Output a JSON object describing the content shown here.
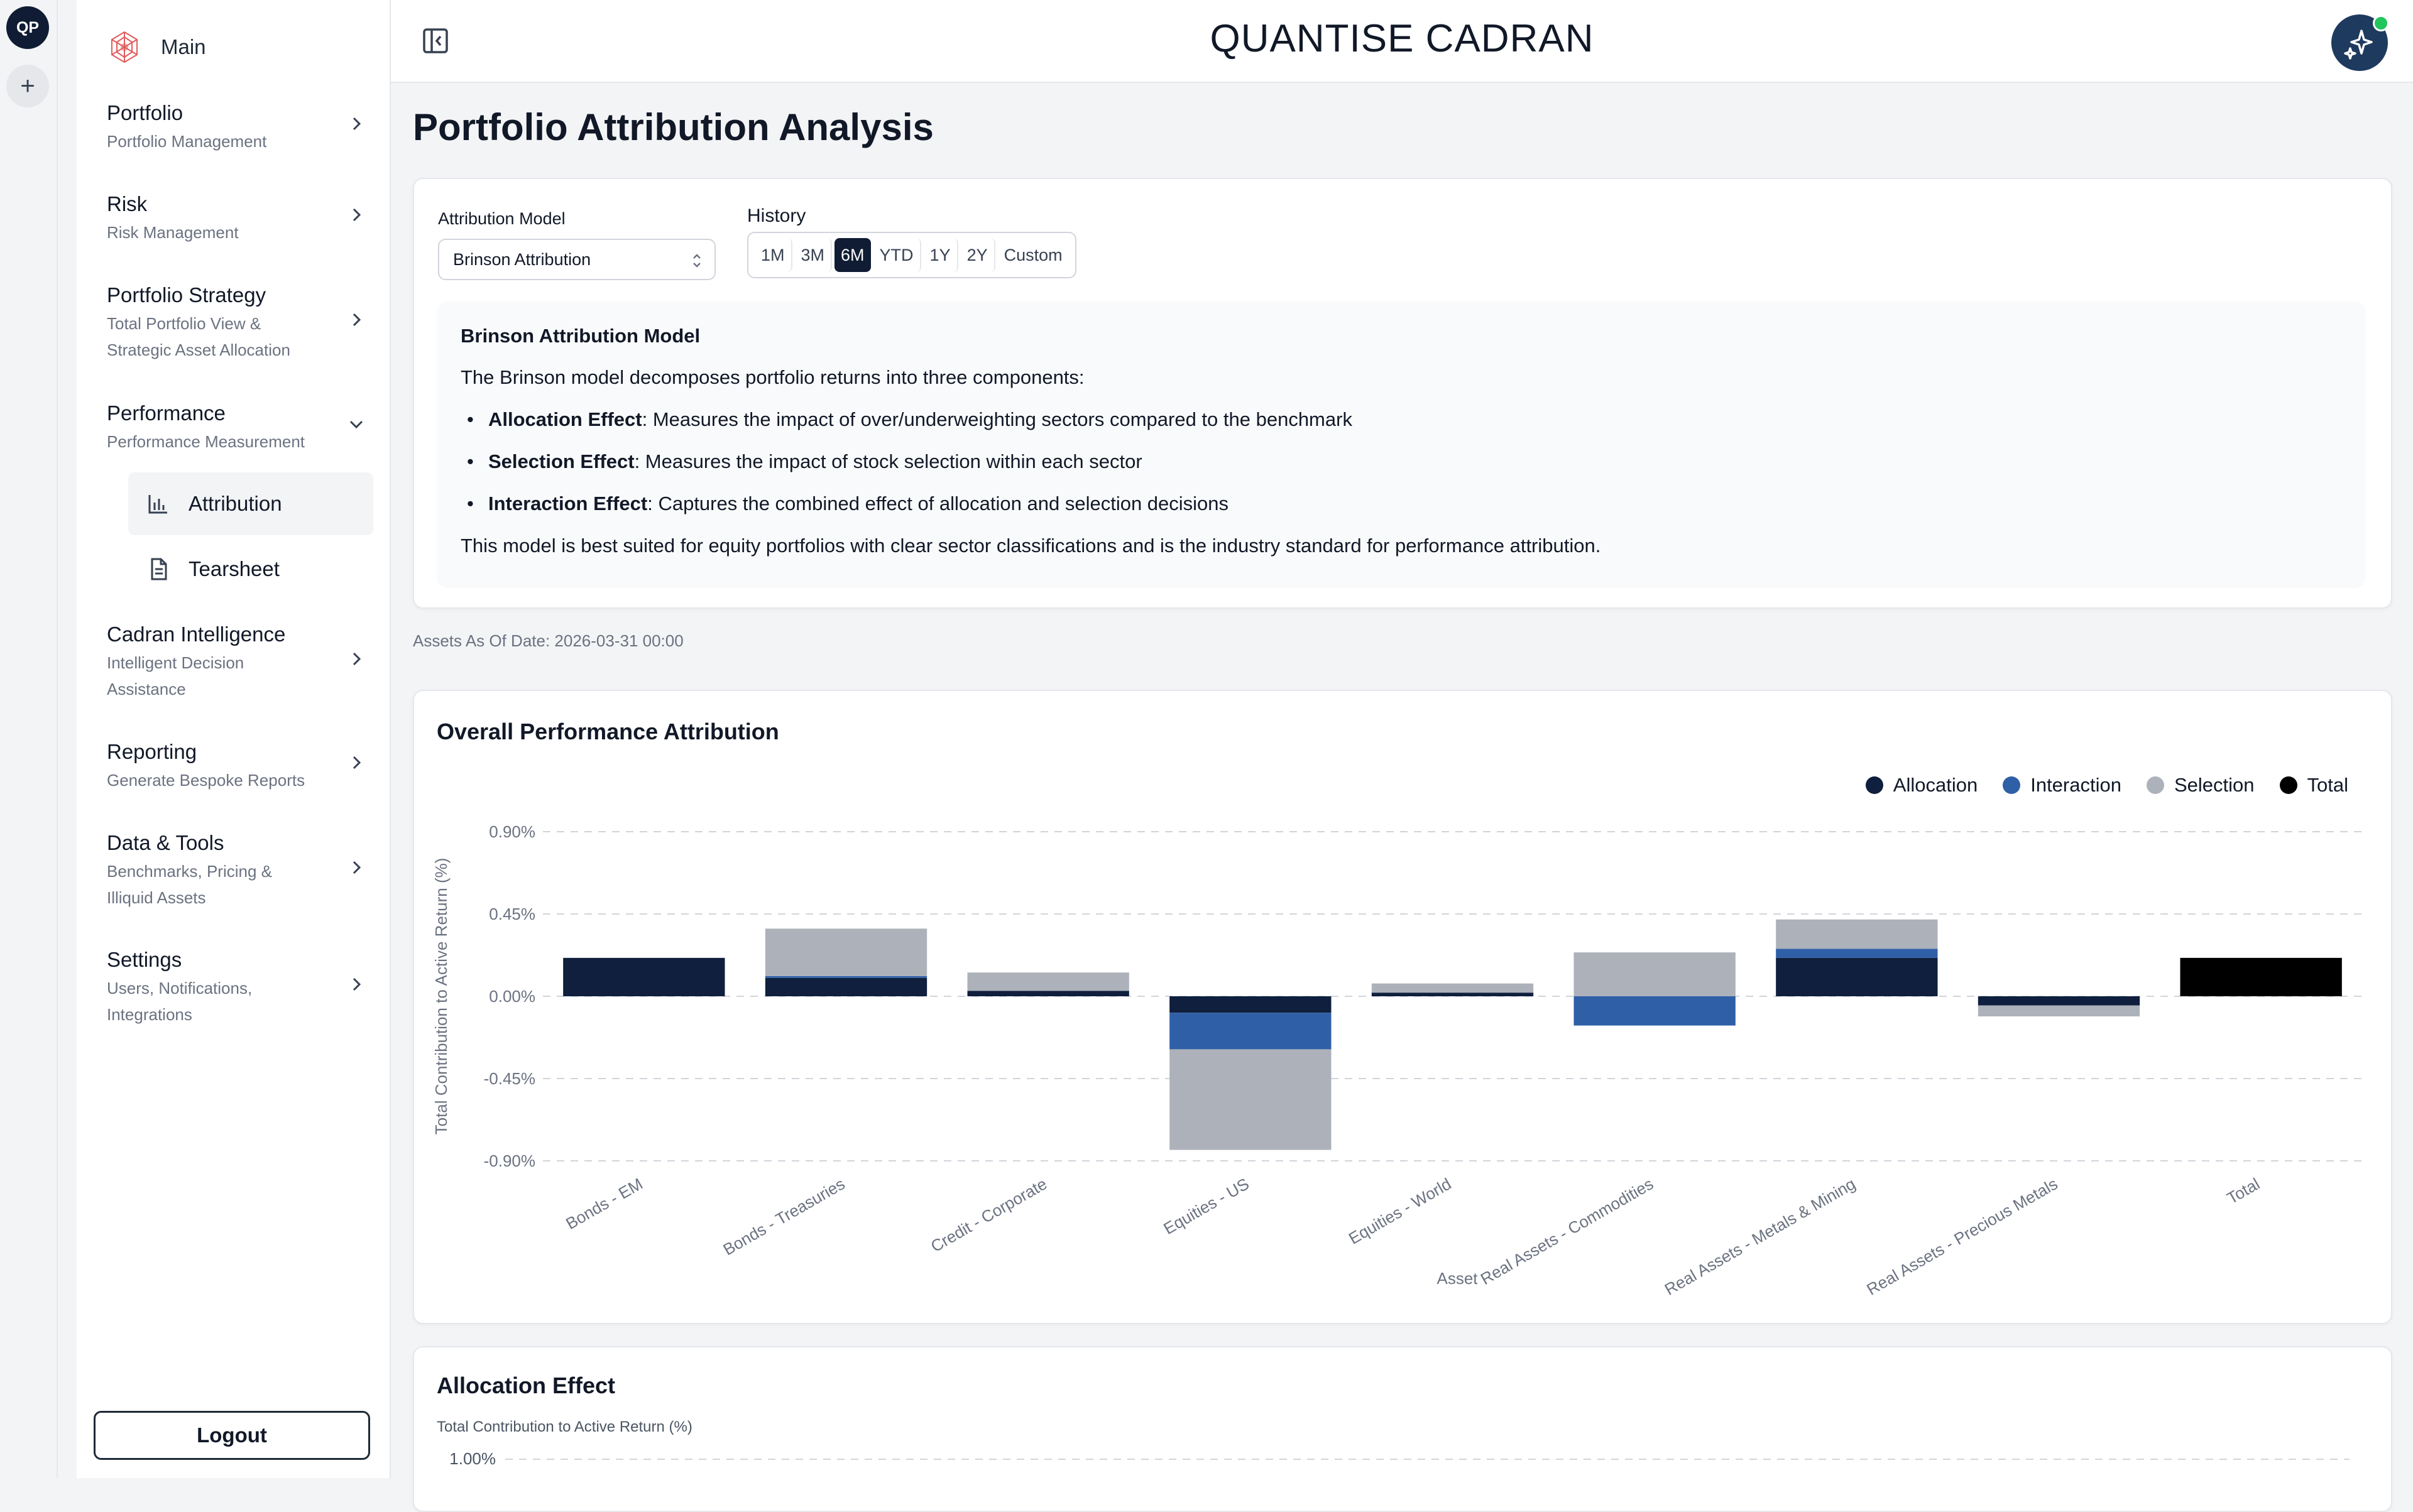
{
  "workspace": {
    "badge": "QP",
    "add_label": "+"
  },
  "sidebar": {
    "main_label": "Main",
    "items": [
      {
        "title": "Portfolio",
        "sub": [
          "Portfolio Management"
        ]
      },
      {
        "title": "Risk",
        "sub": [
          "Risk Management"
        ]
      },
      {
        "title": "Portfolio Strategy",
        "sub": [
          "Total Portfolio View &",
          "Strategic Asset Allocation"
        ]
      },
      {
        "title": "Performance",
        "sub": [
          "Performance Measurement"
        ]
      },
      {
        "title": "Cadran Intelligence",
        "sub": [
          "Intelligent Decision",
          "Assistance"
        ]
      },
      {
        "title": "Reporting",
        "sub": [
          "Generate Bespoke Reports"
        ]
      },
      {
        "title": "Data & Tools",
        "sub": [
          "Benchmarks, Pricing &",
          "Illiquid Assets"
        ]
      },
      {
        "title": "Settings",
        "sub": [
          "Users, Notifications,",
          "Integrations"
        ]
      }
    ],
    "sub_items": [
      {
        "label": "Attribution",
        "icon": "bar-chart-icon",
        "active": true
      },
      {
        "label": "Tearsheet",
        "icon": "document-icon",
        "active": false
      }
    ],
    "logout_label": "Logout"
  },
  "header": {
    "brand": "QUANTISE CADRAN"
  },
  "page": {
    "title": "Portfolio Attribution Analysis",
    "as_of": "Assets As Of Date: 2026-03-31 00:00"
  },
  "controls": {
    "model_label": "Attribution Model",
    "model_value": "Brinson Attribution",
    "history_label": "History",
    "history_options": [
      "1M",
      "3M",
      "6M",
      "YTD",
      "1Y",
      "2Y",
      "Custom"
    ],
    "history_selected": "6M"
  },
  "description": {
    "title": "Brinson Attribution Model",
    "intro": "The Brinson model decomposes portfolio returns into three components:",
    "bullets": [
      {
        "term": "Allocation Effect",
        "text": ": Measures the impact of over/underweighting sectors compared to the benchmark"
      },
      {
        "term": "Selection Effect",
        "text": ": Measures the impact of stock selection within each sector"
      },
      {
        "term": "Interaction Effect",
        "text": ": Captures the combined effect of allocation and selection decisions"
      }
    ],
    "outro": "This model is best suited for equity portfolios with clear sector classifications and is the industry standard for performance attribution."
  },
  "colors": {
    "allocation": "#0f1f3d",
    "interaction": "#2f5fa7",
    "selection": "#adb2ba",
    "total": "#000000",
    "accent": "#0f1c33"
  },
  "chart_data": [
    {
      "type": "bar",
      "stacked": true,
      "title": "Overall Performance Attribution",
      "xlabel": "Asset",
      "ylabel": "Total Contribution to Active Return (%)",
      "ylim": [
        -0.9,
        0.9
      ],
      "yticks": [
        "0.90%",
        "0.45%",
        "0.00%",
        "-0.45%",
        "-0.90%"
      ],
      "ytick_values": [
        0.9,
        0.45,
        0,
        -0.45,
        -0.9
      ],
      "grid": true,
      "legend_position": "top-right",
      "categories": [
        "Bonds - EM",
        "Bonds - Treasuries",
        "Credit - Corporate",
        "Equities - US",
        "Equities - World",
        "Real Assets - Commodities",
        "Real Assets - Metals & Mining",
        "Real Assets - Precious Metals",
        "Total"
      ],
      "series": [
        {
          "name": "Allocation",
          "values": [
            0.21,
            0.1,
            0.03,
            -0.09,
            0.02,
            0.0,
            0.21,
            -0.05,
            0.0
          ]
        },
        {
          "name": "Interaction",
          "values": [
            0.0,
            0.01,
            0.0,
            -0.2,
            0.0,
            -0.16,
            0.05,
            0.0,
            0.0
          ]
        },
        {
          "name": "Selection",
          "values": [
            0.0,
            0.26,
            0.1,
            -0.55,
            0.05,
            0.24,
            0.16,
            -0.06,
            0.0
          ]
        },
        {
          "name": "Total",
          "values": [
            0.0,
            0.0,
            0.0,
            0.0,
            0.0,
            0.0,
            0.0,
            0.0,
            0.21
          ]
        }
      ]
    },
    {
      "type": "bar",
      "title": "Allocation Effect",
      "ylabel": "Total Contribution to Active Return (%)",
      "yticks": [
        "1.00%"
      ]
    }
  ]
}
